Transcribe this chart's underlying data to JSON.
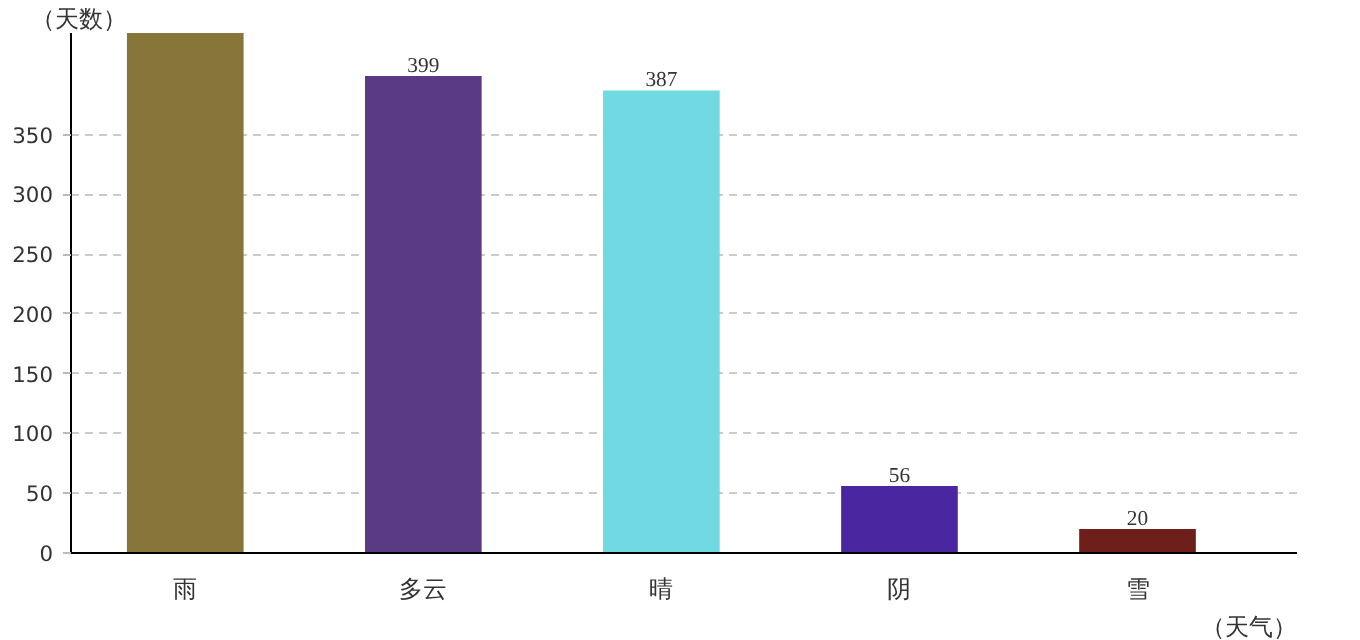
{
  "chart_data": {
    "type": "bar",
    "xlabel": "（天气）",
    "ylabel": "（天数）",
    "categories": [
      "雨",
      "多云",
      "晴",
      "阴",
      "雪"
    ],
    "values": [
      435,
      399,
      387,
      56,
      20
    ],
    "value_labels": [
      null,
      "399",
      "387",
      "56",
      "20"
    ],
    "colors": [
      "#87753a",
      "#5a3a82",
      "#70d9e2",
      "#4a27a1",
      "#6e1f1a"
    ],
    "ylim": [
      0,
      435
    ],
    "yticks": [
      0,
      50,
      100,
      150,
      200,
      250,
      300,
      350
    ],
    "grid": "y"
  }
}
